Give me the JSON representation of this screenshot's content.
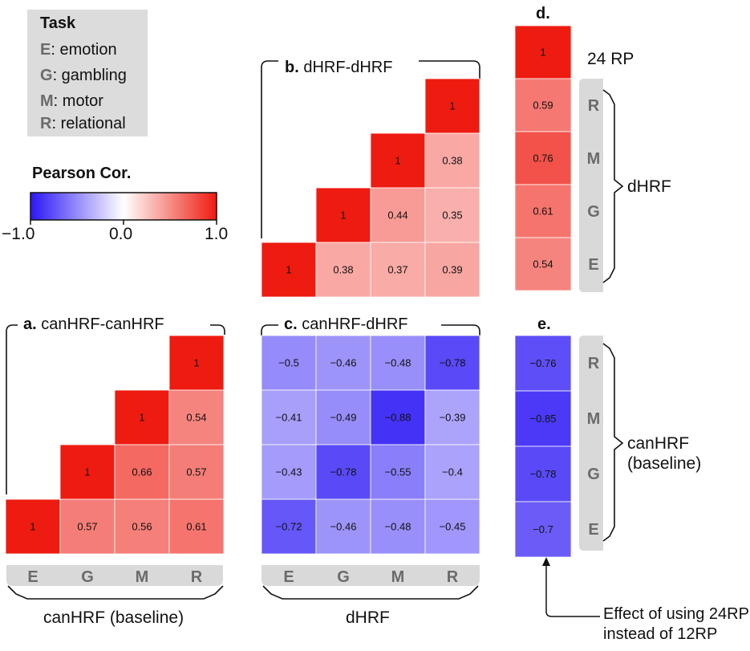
{
  "legend": {
    "title": "Task",
    "items": [
      {
        "key": "E",
        "label": ": emotion"
      },
      {
        "key": "G",
        "label": ": gambling"
      },
      {
        "key": "M",
        "label": ": motor"
      },
      {
        "key": "R",
        "label": ": relational"
      }
    ]
  },
  "colorbar": {
    "title": "Pearson Cor.",
    "min_label": "−1.0",
    "mid_label": "0.0",
    "max_label": "1.0",
    "colors": {
      "low": "#2b16f5",
      "mid": "#ffffff",
      "high": "#ee1b10"
    }
  },
  "panels": {
    "a": {
      "letter": "a.",
      "title": " canHRF-canHRF"
    },
    "b": {
      "letter": "b.",
      "title": " dHRF-dHRF"
    },
    "c": {
      "letter": "c.",
      "title": " canHRF-dHRF"
    },
    "d": {
      "letter": "d."
    },
    "e": {
      "letter": "e."
    }
  },
  "labels": {
    "rp24": "24 RP",
    "dhrf_side": "dHRF",
    "canhrf_side_1": "canHRF",
    "canhrf_side_2": "(baseline)",
    "x_left": "canHRF (baseline)",
    "x_mid": "dHRF",
    "note_1": "Effect of using 24RP",
    "note_2": "instead of 12RP"
  },
  "chart_data": [
    {
      "type": "heatmap",
      "title": "a. canHRF-canHRF",
      "xlabel": "canHRF (baseline)",
      "x": [
        "E",
        "G",
        "M",
        "R"
      ],
      "y": [
        "R",
        "M",
        "G",
        "E"
      ],
      "values": [
        [
          null,
          null,
          null,
          1
        ],
        [
          null,
          null,
          1,
          0.54
        ],
        [
          null,
          1,
          0.66,
          0.57
        ],
        [
          1,
          0.57,
          0.56,
          0.61
        ]
      ],
      "zlim": [
        -1,
        1
      ]
    },
    {
      "type": "heatmap",
      "title": "b. dHRF-dHRF",
      "x": [
        "E",
        "G",
        "M",
        "R"
      ],
      "y": [
        "R",
        "M",
        "G",
        "E"
      ],
      "values": [
        [
          null,
          null,
          null,
          1
        ],
        [
          null,
          null,
          1,
          0.38
        ],
        [
          null,
          1,
          0.44,
          0.35
        ],
        [
          1,
          0.38,
          0.37,
          0.39
        ]
      ],
      "zlim": [
        -1,
        1
      ]
    },
    {
      "type": "heatmap",
      "title": "c. canHRF-dHRF",
      "xlabel": "dHRF",
      "ylabel": "canHRF (baseline)",
      "x": [
        "E",
        "G",
        "M",
        "R"
      ],
      "y": [
        "R",
        "M",
        "G",
        "E"
      ],
      "values": [
        [
          -0.5,
          -0.46,
          -0.48,
          -0.78
        ],
        [
          -0.41,
          -0.49,
          -0.88,
          -0.39
        ],
        [
          -0.43,
          -0.78,
          -0.55,
          -0.4
        ],
        [
          -0.72,
          -0.46,
          -0.48,
          -0.45
        ]
      ],
      "zlim": [
        -1,
        1
      ]
    },
    {
      "type": "heatmap",
      "title": "d.",
      "ylabel": "dHRF",
      "y": [
        "24 RP",
        "R",
        "M",
        "G",
        "E"
      ],
      "values": [
        [
          1
        ],
        [
          0.59
        ],
        [
          0.76
        ],
        [
          0.61
        ],
        [
          0.54
        ]
      ],
      "zlim": [
        -1,
        1
      ]
    },
    {
      "type": "heatmap",
      "title": "e.",
      "ylabel": "canHRF (baseline)",
      "y": [
        "R",
        "M",
        "G",
        "E"
      ],
      "values": [
        [
          -0.76
        ],
        [
          -0.85
        ],
        [
          -0.78
        ],
        [
          -0.7
        ]
      ],
      "zlim": [
        -1,
        1
      ],
      "annotation": "Effect of using 24RP instead of 12RP"
    }
  ]
}
